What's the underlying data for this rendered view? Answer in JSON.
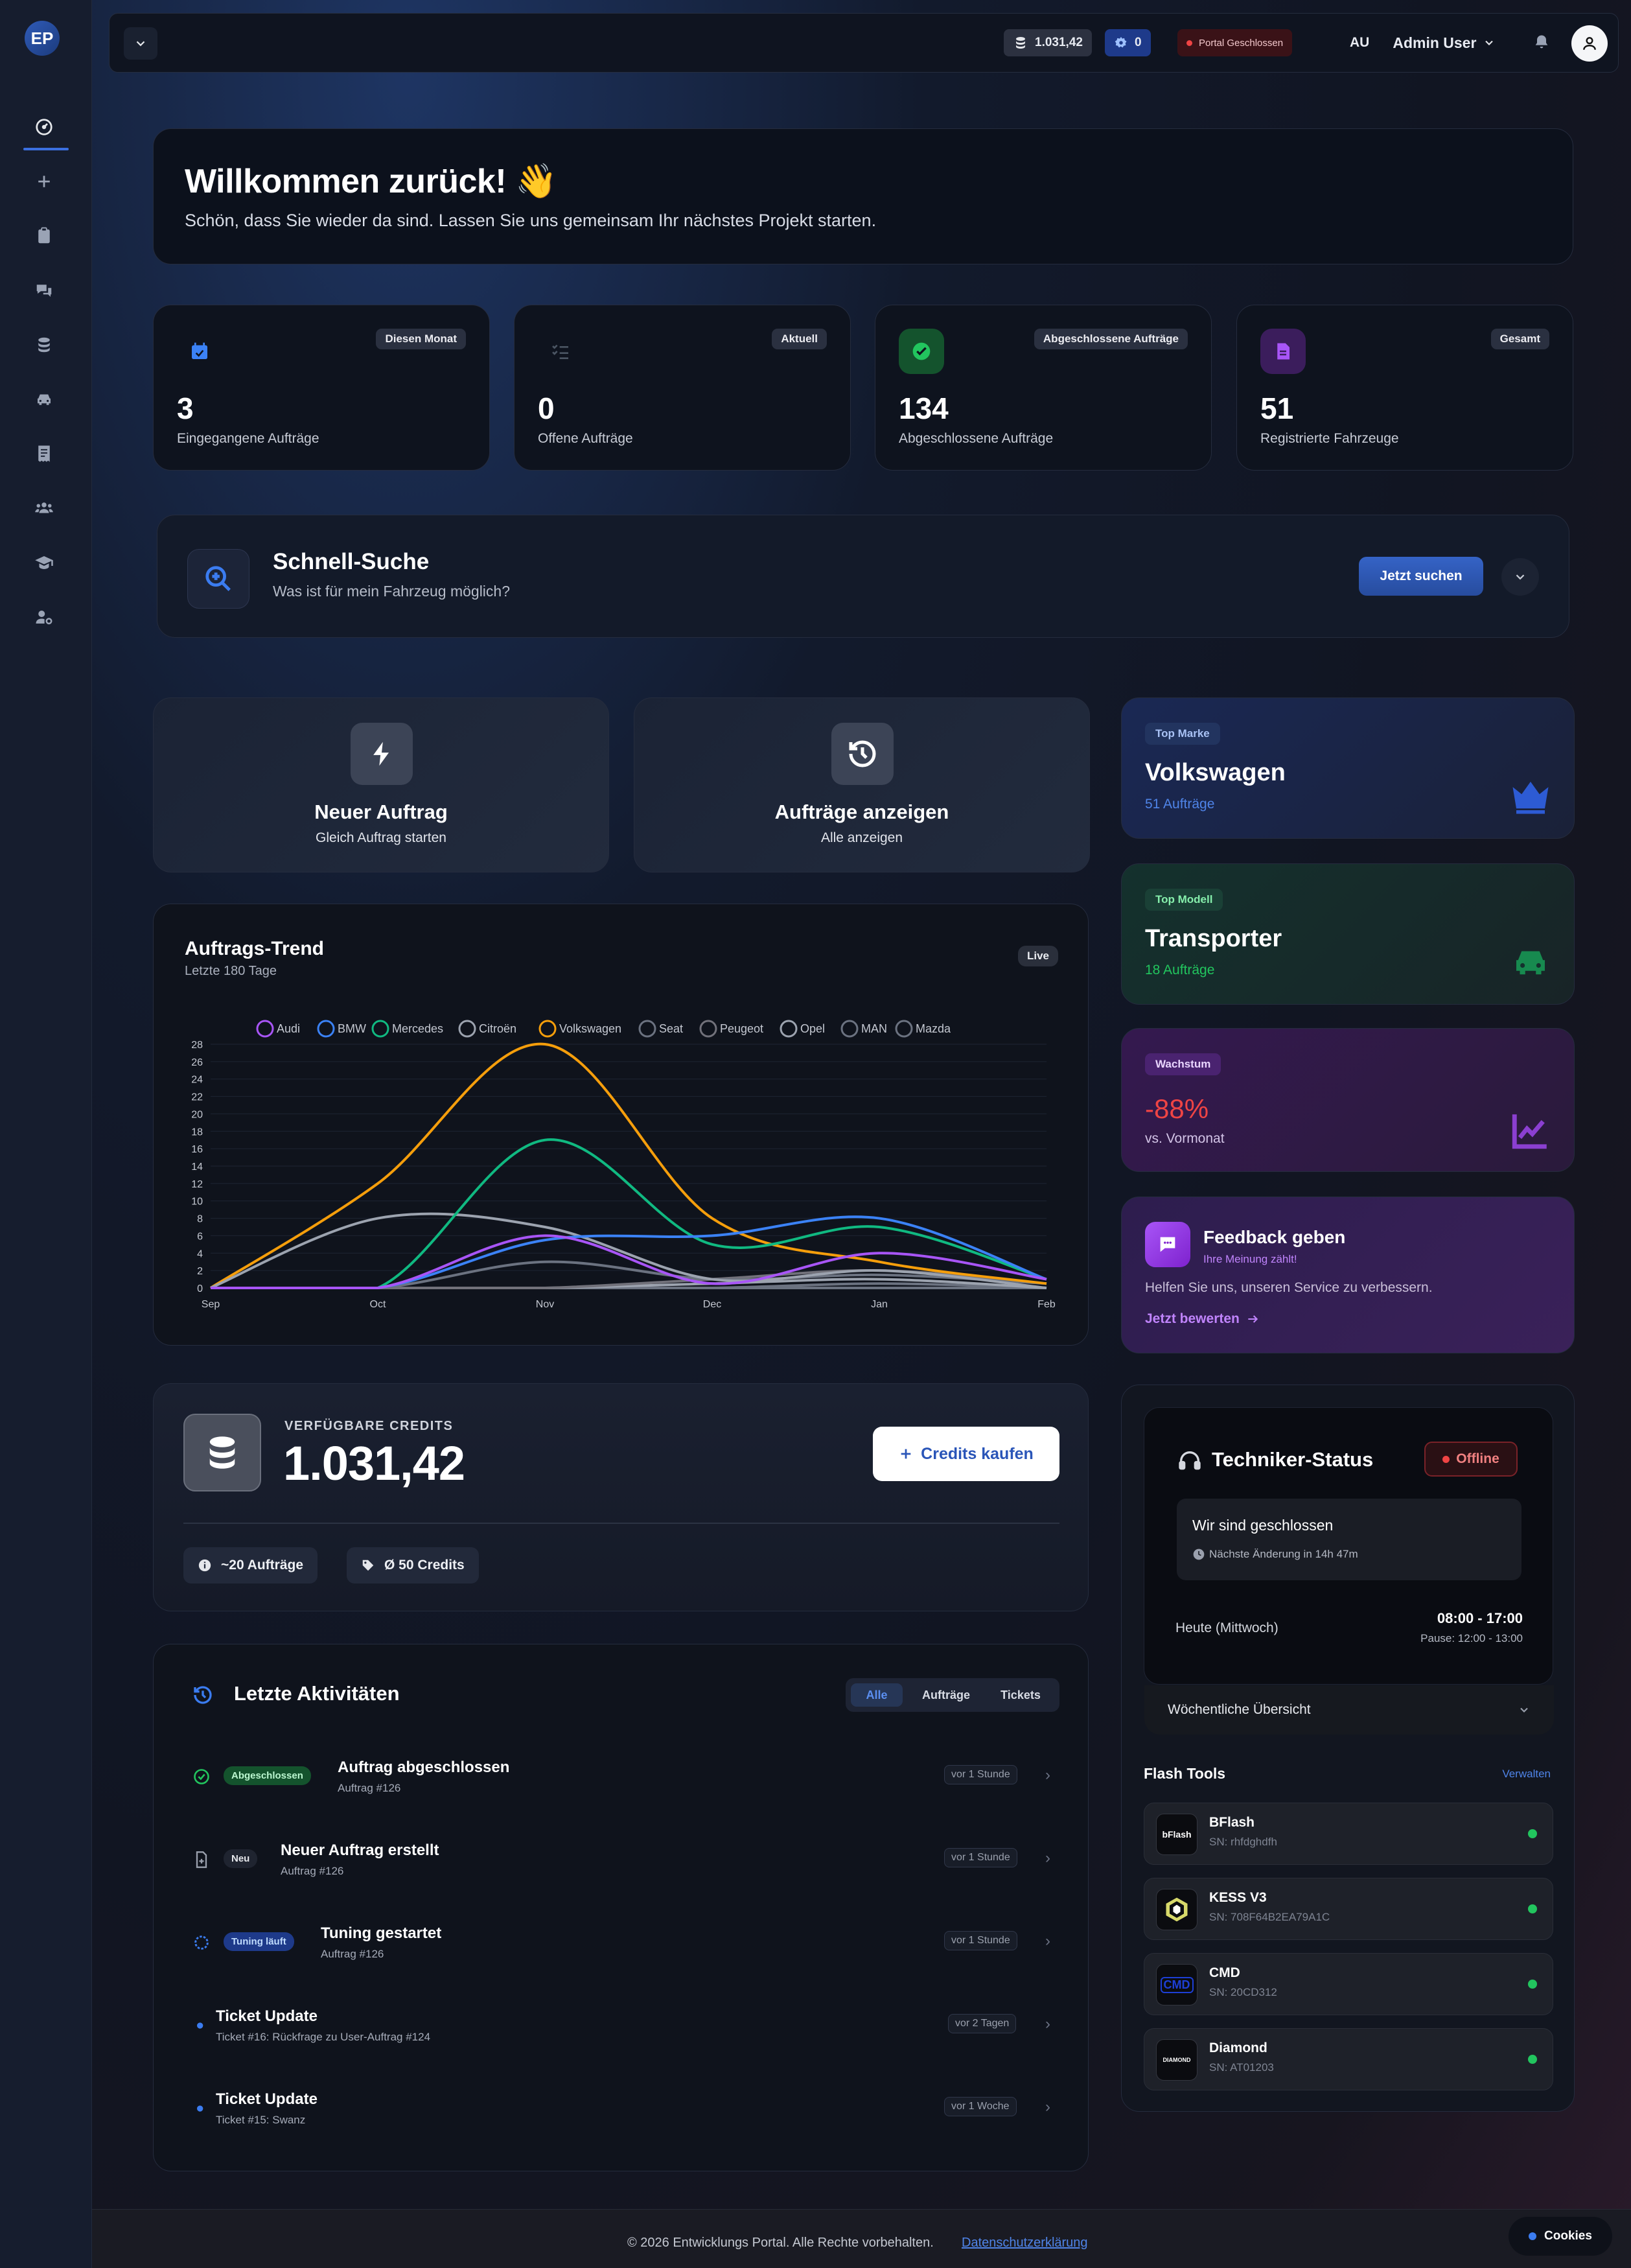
{
  "sidebar": {
    "logo_text": "EP",
    "items": [
      {
        "icon": "dashboard-icon"
      },
      {
        "icon": "plus-icon"
      },
      {
        "icon": "clipboard-icon"
      },
      {
        "icon": "chat-icon"
      },
      {
        "icon": "coins-icon"
      },
      {
        "icon": "car-icon"
      },
      {
        "icon": "receipt-icon"
      },
      {
        "icon": "users-icon"
      },
      {
        "icon": "graduation-cap-icon"
      },
      {
        "icon": "user-gear-icon"
      }
    ]
  },
  "topbar": {
    "credits": "1.031,42",
    "settings_count": "0",
    "portal_status": "Portal Geschlossen",
    "avatar_initials": "AU",
    "user_name": "Admin User"
  },
  "welcome": {
    "title": "Willkommen zurück! 👋",
    "subtitle": "Schön, dass Sie wieder da sind. Lassen Sie uns gemeinsam Ihr nächstes Projekt starten."
  },
  "stats": [
    {
      "badge": "Diesen Monat",
      "value": "3",
      "label": "Eingegangene Aufträge",
      "color": "#3b82f6"
    },
    {
      "badge": "Aktuell",
      "value": "0",
      "label": "Offene Aufträge",
      "color": "#4b5563"
    },
    {
      "badge": "Abgeschlossene Aufträge",
      "value": "134",
      "label": "Abgeschlossene Aufträge",
      "color": "#22c55e"
    },
    {
      "badge": "Gesamt",
      "value": "51",
      "label": "Registrierte Fahrzeuge",
      "color": "#a855f7"
    }
  ],
  "quick_search": {
    "title": "Schnell-Suche",
    "subtitle": "Was ist für mein Fahrzeug möglich?",
    "button": "Jetzt suchen"
  },
  "actions": [
    {
      "title": "Neuer Auftrag",
      "subtitle": "Gleich Auftrag starten"
    },
    {
      "title": "Aufträge anzeigen",
      "subtitle": "Alle anzeigen"
    }
  ],
  "highlights": {
    "top_brand": {
      "badge": "Top Marke",
      "title": "Volkswagen",
      "sub": "51 Aufträge"
    },
    "top_model": {
      "badge": "Top Modell",
      "title": "Transporter",
      "sub": "18 Aufträge"
    },
    "growth": {
      "badge": "Wachstum",
      "title": "-88%",
      "sub": "vs. Vormonat"
    },
    "feedback": {
      "title": "Feedback geben",
      "tag": "Ihre Meinung zählt!",
      "text": "Helfen Sie uns, unseren Service zu verbessern.",
      "link": "Jetzt bewerten"
    }
  },
  "chart_card": {
    "title": "Auftrags-Trend",
    "subtitle": "Letzte 180 Tage",
    "badge": "Live"
  },
  "chart_data": {
    "type": "line",
    "title": "Auftrags-Trend",
    "x": [
      "Sep",
      "Oct",
      "Nov",
      "Dec",
      "Jan",
      "Feb"
    ],
    "ylim": [
      0,
      28
    ],
    "yticks": [
      0,
      2,
      4,
      6,
      8,
      10,
      12,
      14,
      16,
      18,
      20,
      22,
      24,
      26,
      28
    ],
    "grid": true,
    "legend": "top",
    "series": [
      {
        "name": "Audi",
        "color": "#a855f7",
        "values": [
          0,
          0,
          6,
          0.5,
          4,
          1
        ]
      },
      {
        "name": "BMW",
        "color": "#3b82f6",
        "values": [
          0,
          0,
          5.5,
          6,
          8,
          1
        ]
      },
      {
        "name": "Mercedes",
        "color": "#10b981",
        "values": [
          0,
          0,
          17,
          5,
          7,
          1
        ]
      },
      {
        "name": "Citroën",
        "color": "#9ca3af",
        "values": [
          0,
          8,
          7,
          1,
          2,
          0
        ]
      },
      {
        "name": "Volkswagen",
        "color": "#f59e0b",
        "values": [
          0,
          12,
          28,
          8,
          3,
          0.5
        ]
      },
      {
        "name": "Seat",
        "color": "#6b7280",
        "values": [
          0,
          0,
          3,
          1,
          1.5,
          0.5
        ]
      },
      {
        "name": "Peugeot",
        "color": "#71717a",
        "values": [
          0,
          0,
          0,
          1,
          2,
          0.5
        ]
      },
      {
        "name": "Opel",
        "color": "#9ca3af",
        "values": [
          0,
          0,
          0,
          0.5,
          1,
          0
        ]
      },
      {
        "name": "MAN",
        "color": "#6b7280",
        "values": [
          0,
          0,
          0,
          0,
          0.5,
          0
        ]
      },
      {
        "name": "Mazda",
        "color": "#6b7280",
        "values": [
          0,
          0,
          0,
          0,
          0,
          0
        ]
      }
    ]
  },
  "credits": {
    "label": "VERFÜGBARE CREDITS",
    "value": "1.031,42",
    "buy_button": "Credits kaufen",
    "chip_orders": "~20 Aufträge",
    "chip_avg": "Ø 50 Credits"
  },
  "activity": {
    "title": "Letzte Aktivitäten",
    "tabs": [
      "Alle",
      "Aufträge",
      "Tickets"
    ],
    "items": [
      {
        "badge": "Abgeschlossen",
        "title": "Auftrag abgeschlossen",
        "sub": "Auftrag #126",
        "time": "vor 1 Stunde"
      },
      {
        "badge": "Neu",
        "title": "Neuer Auftrag erstellt",
        "sub": "Auftrag #126",
        "time": "vor 1 Stunde"
      },
      {
        "badge": "Tuning läuft",
        "title": "Tuning gestartet",
        "sub": "Auftrag #126",
        "time": "vor 1 Stunde"
      },
      {
        "badge": "",
        "title": "Ticket Update",
        "sub": "Ticket #16: Rückfrage zu User-Auftrag #124",
        "time": "vor 2 Tagen"
      },
      {
        "badge": "",
        "title": "Ticket Update",
        "sub": "Ticket #15: Swanz",
        "time": "vor 1 Woche"
      }
    ]
  },
  "tech": {
    "title": "Techniker-Status",
    "status": "Offline",
    "closed_title": "Wir sind geschlossen",
    "next_change": "Nächste Änderung in 14h 47m",
    "today_label": "Heute (Mittwoch)",
    "today_hours": "08:00 - 17:00",
    "pause": "Pause: 12:00 - 13:00",
    "weekly": "Wöchentliche Übersicht"
  },
  "flash_tools": {
    "title": "Flash Tools",
    "manage": "Verwalten",
    "items": [
      {
        "name": "BFlash",
        "sn": "SN: rhfdghdfh",
        "logo": "bFlash"
      },
      {
        "name": "KESS V3",
        "sn": "SN: 708F64B2EA79A1C",
        "logo": "KESS"
      },
      {
        "name": "CMD",
        "sn": "SN: 20CD312",
        "logo": "CMD"
      },
      {
        "name": "Diamond",
        "sn": "SN: AT01203",
        "logo": "DIAMOND"
      }
    ]
  },
  "footer": {
    "copyright": "© 2026 Entwicklungs Portal. Alle Rechte vorbehalten.",
    "privacy": "Datenschutzerklärung",
    "cookies": "Cookies"
  }
}
